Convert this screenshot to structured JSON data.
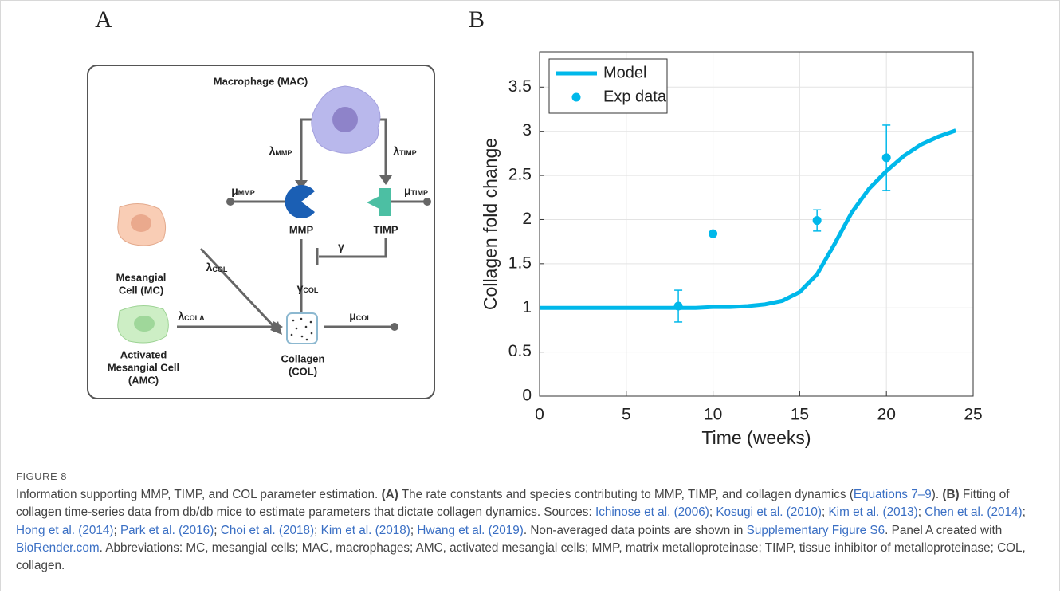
{
  "figure": {
    "panel_a": {
      "label": "A",
      "macrophage": "Macrophage (MAC)",
      "mmp": "MMP",
      "timp": "TIMP",
      "mesangial": [
        "Mesangial",
        "Cell (MC)"
      ],
      "activated": [
        "Activated",
        "Mesangial Cell",
        "(AMC)"
      ],
      "collagen": [
        "Collagen",
        "(COL)"
      ],
      "rates": [
        {
          "symbol": "λ",
          "subscript": "MMP"
        },
        {
          "symbol": "λ",
          "subscript": "TIMP"
        },
        {
          "symbol": "μ",
          "subscript": "MMP"
        },
        {
          "symbol": "μ",
          "subscript": "TIMP"
        },
        {
          "symbol": "γ",
          "subscript": ""
        },
        {
          "symbol": "γ",
          "subscript": "COL"
        },
        {
          "symbol": "λ",
          "subscript": "COL"
        },
        {
          "symbol": "λ",
          "subscript": "COLA"
        },
        {
          "symbol": "μ",
          "subscript": "COL"
        }
      ]
    },
    "panel_b": {
      "label": "B"
    }
  },
  "chart_data": {
    "type": "line",
    "x_label": "Time (weeks)",
    "y_label": "Collagen fold change",
    "xlim": [
      0,
      25
    ],
    "ylim": [
      0,
      3.9
    ],
    "xticks": [
      0,
      5,
      10,
      15,
      20,
      25
    ],
    "yticks": [
      0,
      0.5,
      1,
      1.5,
      2,
      2.5,
      3,
      3.5
    ],
    "grid": true,
    "legend": "upper left",
    "series": [
      {
        "name": "Model",
        "type": "line",
        "color": "#00b8ea",
        "x": [
          0,
          1,
          2,
          3,
          4,
          5,
          6,
          7,
          8,
          9,
          10,
          11,
          12,
          13,
          14,
          15,
          16,
          17,
          18,
          19,
          20,
          21,
          22,
          23,
          24
        ],
        "values": [
          1,
          1,
          1,
          1,
          1,
          1,
          1,
          1,
          1,
          1,
          1.01,
          1.01,
          1.02,
          1.04,
          1.08,
          1.18,
          1.38,
          1.72,
          2.08,
          2.35,
          2.55,
          2.72,
          2.85,
          2.94,
          3.01
        ]
      },
      {
        "name": "Exp data",
        "type": "scatter",
        "color": "#00b8ea",
        "x": [
          8,
          10,
          16,
          20
        ],
        "values": [
          1.02,
          1.84,
          1.99,
          2.7
        ],
        "errors": [
          0.18,
          null,
          0.12,
          0.37
        ]
      }
    ]
  },
  "caption": {
    "label": "FIGURE 8",
    "runs": [
      {
        "text": "Information supporting MMP, TIMP, and COL parameter estimation. "
      },
      {
        "text": "(A)",
        "bold": true
      },
      {
        "text": " The rate constants and species contributing to MMP, TIMP, and collagen dynamics ("
      },
      {
        "text": "Equations 7–9",
        "link": true
      },
      {
        "text": "). "
      },
      {
        "text": "(B)",
        "bold": true
      },
      {
        "text": " Fitting of collagen time-series data from db/db mice to estimate parameters that dictate collagen dynamics. Sources: "
      },
      {
        "text": "Ichinose et al. (2006)",
        "link": true
      },
      {
        "text": "; "
      },
      {
        "text": "Kosugi et al. (2010)",
        "link": true
      },
      {
        "text": "; "
      },
      {
        "text": "Kim et al. (2013)",
        "link": true
      },
      {
        "text": "; "
      },
      {
        "text": "Chen et al. (2014)",
        "link": true
      },
      {
        "text": "; "
      },
      {
        "text": "Hong et al. (2014)",
        "link": true
      },
      {
        "text": "; "
      },
      {
        "text": "Park et al. (2016)",
        "link": true
      },
      {
        "text": "; "
      },
      {
        "text": "Choi et al. (2018)",
        "link": true
      },
      {
        "text": "; "
      },
      {
        "text": "Kim et al. (2018)",
        "link": true
      },
      {
        "text": "; "
      },
      {
        "text": "Hwang et al. (2019)",
        "link": true
      },
      {
        "text": ". Non-averaged data points are shown in "
      },
      {
        "text": "Supplementary Figure S6",
        "link": true
      },
      {
        "text": ". Panel A created with "
      },
      {
        "text": "BioRender.com",
        "link": true
      },
      {
        "text": ". Abbreviations: MC, mesangial cells; MAC, macrophages; AMC, activated mesangial cells; MMP, matrix metalloproteinase; TIMP, tissue inhibitor of metalloproteinase; COL, collagen."
      }
    ]
  }
}
